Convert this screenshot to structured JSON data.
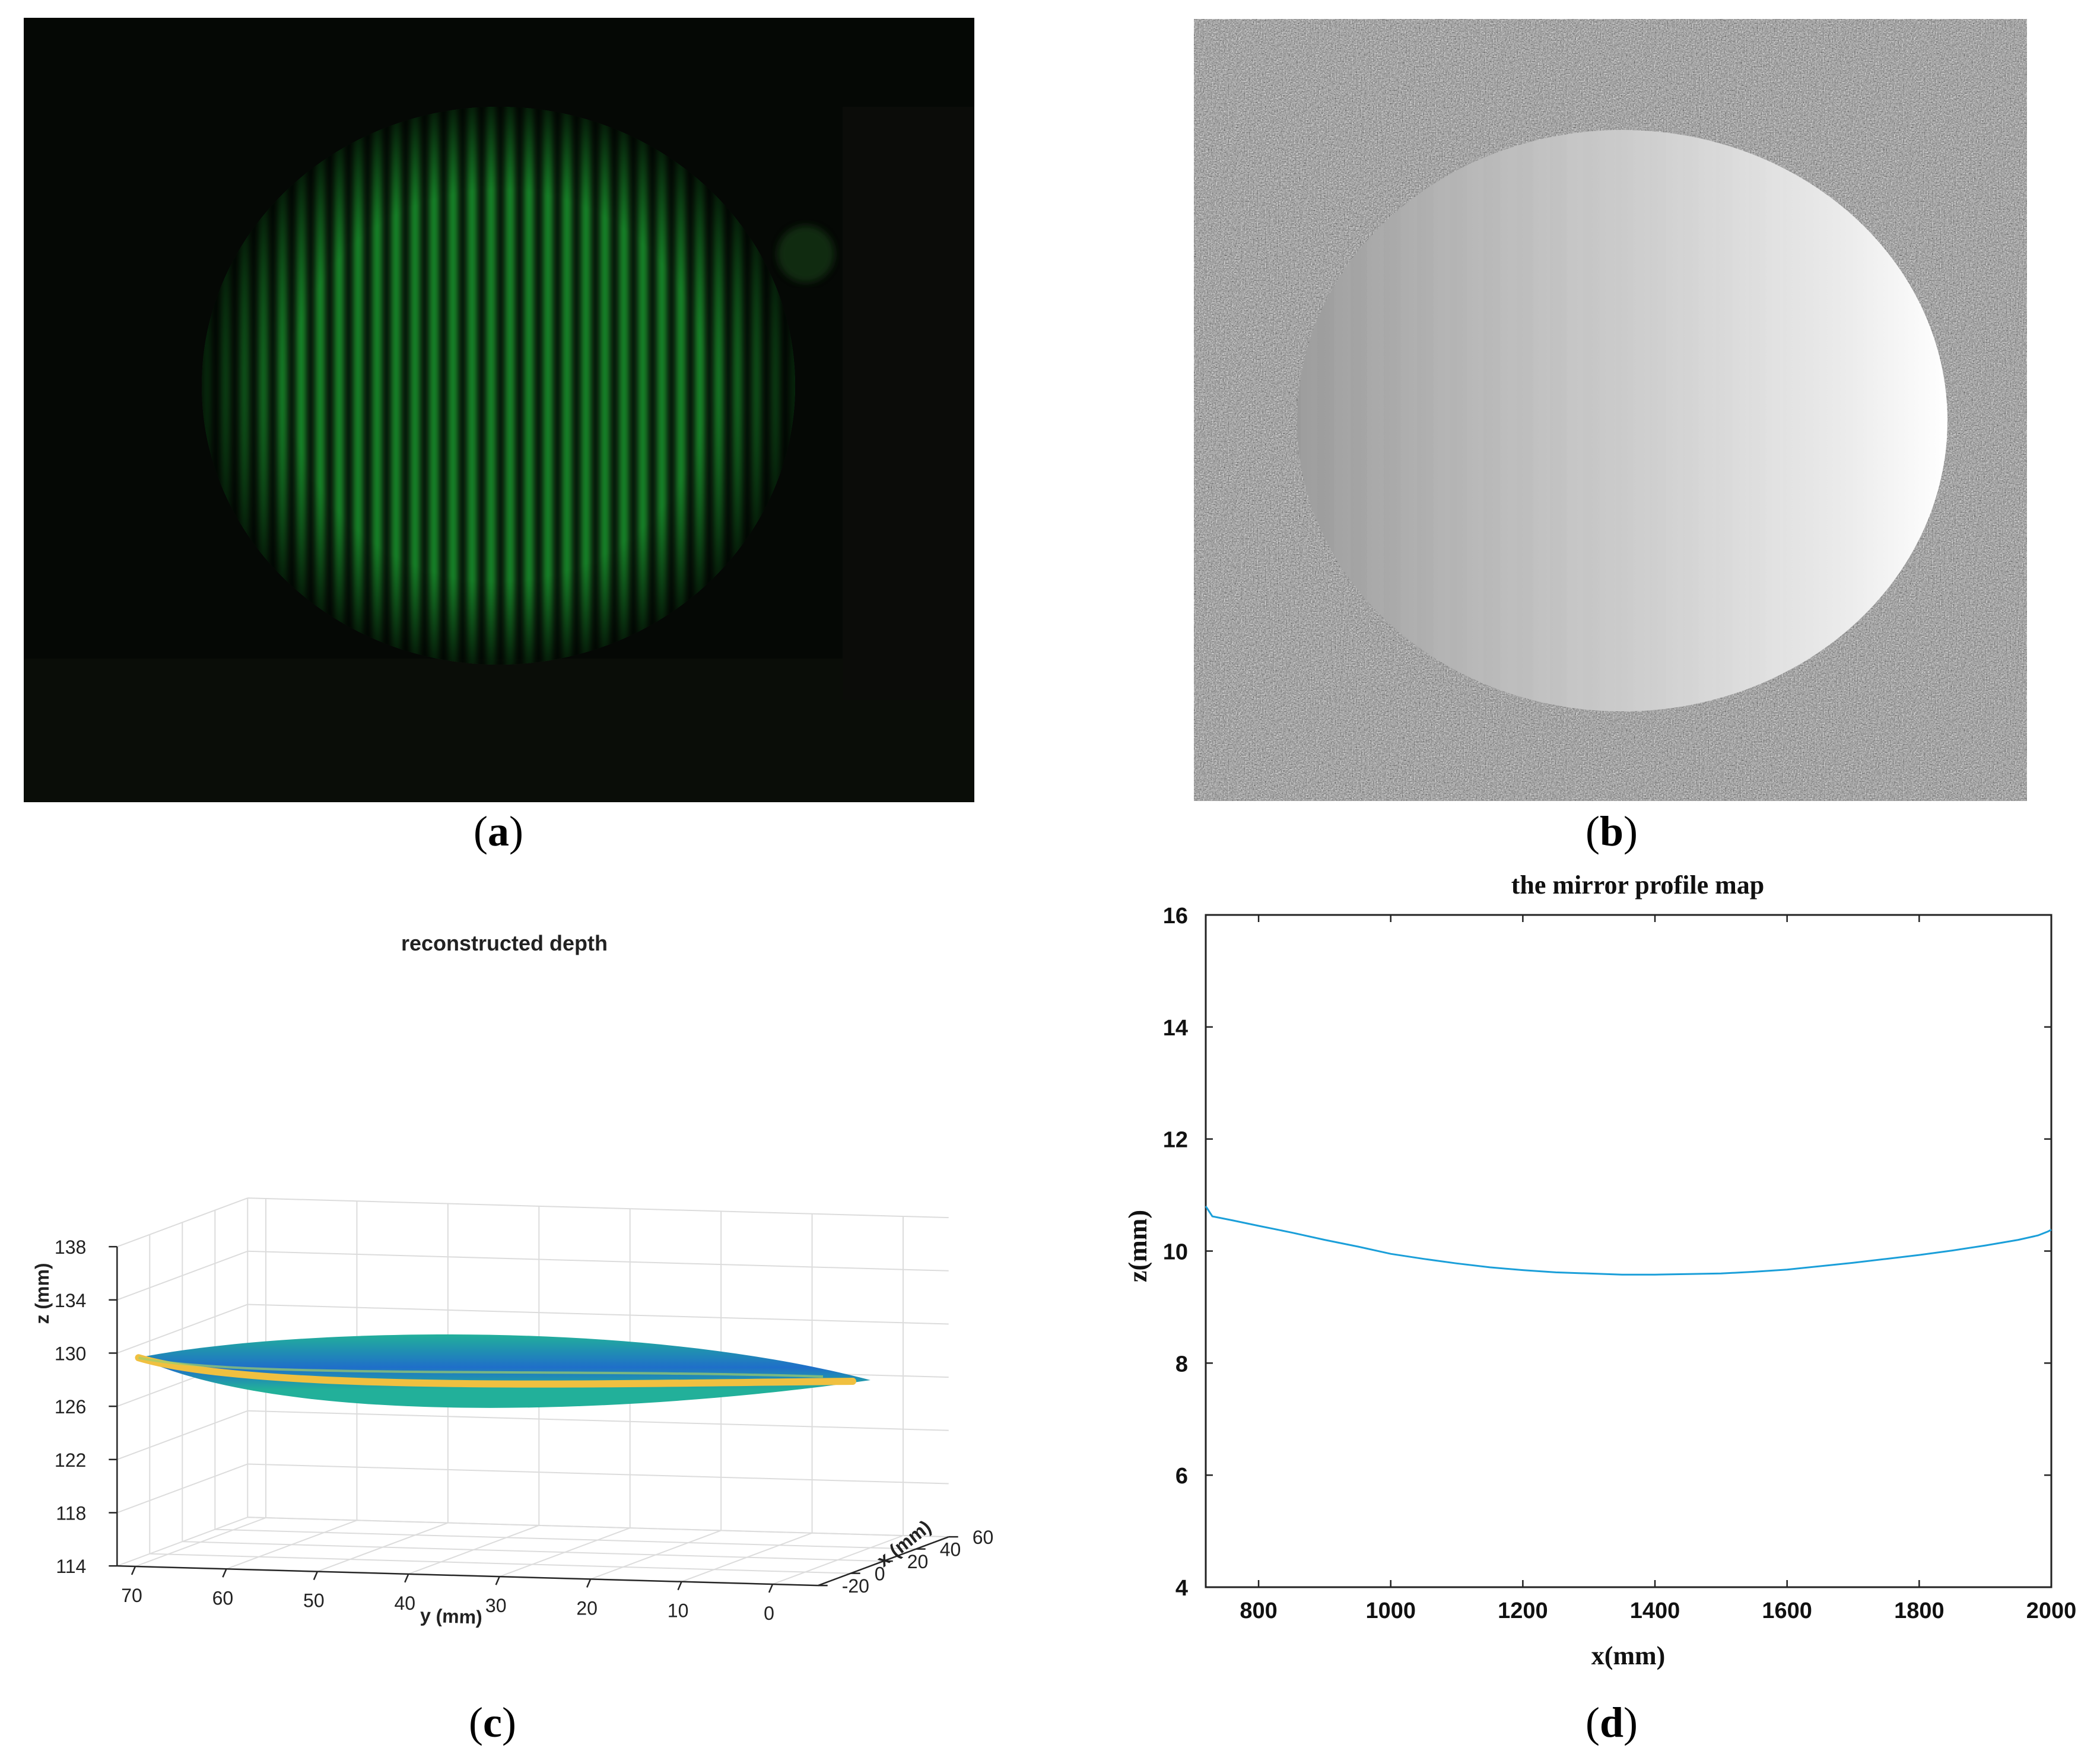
{
  "figure": {
    "panels": [
      {
        "id": "a",
        "label": "a",
        "description_icon": "fringe-pattern-image"
      },
      {
        "id": "b",
        "label": "b",
        "description_icon": "phase-map-image"
      },
      {
        "id": "c",
        "label": "c"
      },
      {
        "id": "d",
        "label": "d"
      }
    ]
  },
  "colors": {
    "fringe_green": "#1e9a2e",
    "fringe_dark": "#050805",
    "surface_blue": "#1f6fc9",
    "surface_teal": "#22b09a",
    "surface_yellow": "#f0c040",
    "profile_line": "#1b9fd9"
  },
  "chart_data": [
    {
      "type": "scatter",
      "panel": "c",
      "title": "reconstructed depth",
      "xlabel": "x (mm)",
      "ylabel": "y (mm)",
      "zlabel": "z (mm)",
      "x_ticks": [
        "-20",
        "0",
        "20",
        "40",
        "60"
      ],
      "y_ticks": [
        "70",
        "60",
        "50",
        "40",
        "30",
        "20",
        "10",
        "0"
      ],
      "z_ticks": [
        "114",
        "118",
        "122",
        "126",
        "130",
        "134",
        "138"
      ],
      "zlim": [
        114,
        138
      ],
      "grid": true,
      "surface_z_level": 129
    },
    {
      "type": "line",
      "panel": "d",
      "title": "the mirror profile map",
      "xlabel": "x(mm)",
      "ylabel": "z(mm)",
      "xlim": [
        720,
        2000
      ],
      "ylim": [
        4,
        16
      ],
      "x_ticks": [
        800,
        1000,
        1200,
        1400,
        1600,
        1800,
        2000
      ],
      "y_ticks": [
        4,
        6,
        8,
        10,
        12,
        14,
        16
      ],
      "grid": false,
      "series": [
        {
          "x": [
            720,
            730,
            760,
            800,
            850,
            900,
            950,
            1000,
            1050,
            1100,
            1150,
            1200,
            1250,
            1300,
            1350,
            1400,
            1450,
            1500,
            1550,
            1600,
            1650,
            1700,
            1750,
            1800,
            1850,
            1900,
            1950,
            1980,
            1995,
            2000
          ],
          "y": [
            10.8,
            10.62,
            10.55,
            10.45,
            10.33,
            10.2,
            10.08,
            9.95,
            9.86,
            9.78,
            9.71,
            9.66,
            9.62,
            9.6,
            9.58,
            9.58,
            9.59,
            9.6,
            9.63,
            9.67,
            9.73,
            9.79,
            9.86,
            9.93,
            10.01,
            10.1,
            10.2,
            10.28,
            10.35,
            10.38
          ]
        }
      ]
    }
  ]
}
